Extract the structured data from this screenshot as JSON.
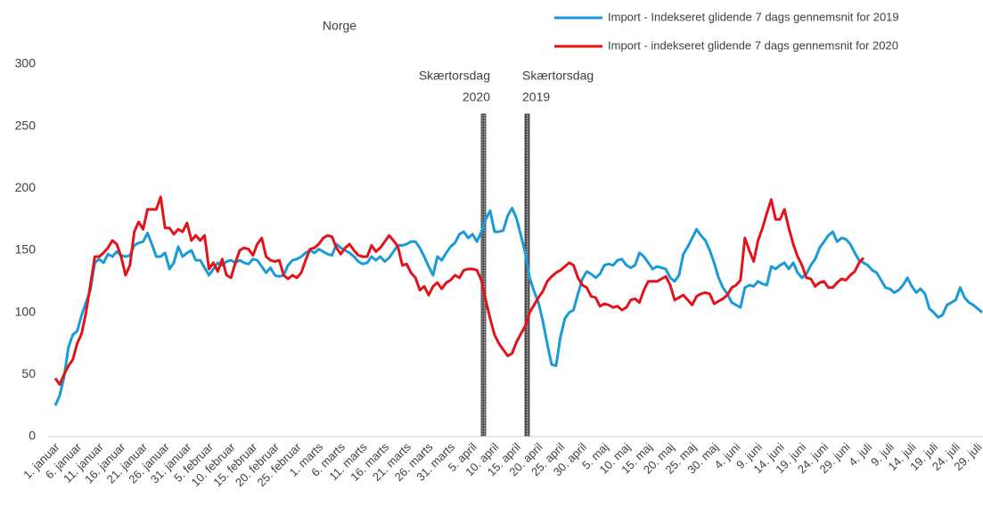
{
  "chart_data": {
    "type": "line",
    "title": "Norge",
    "categories": [
      "1. januar",
      null,
      null,
      null,
      null,
      "6. januar",
      null,
      null,
      null,
      null,
      "11. januar",
      null,
      null,
      null,
      null,
      "16. januar",
      null,
      null,
      null,
      null,
      "21. januar",
      null,
      null,
      null,
      null,
      "26. januar",
      null,
      null,
      null,
      null,
      "31. januar",
      null,
      null,
      null,
      null,
      "5. februar",
      null,
      null,
      null,
      null,
      "10. februar",
      null,
      null,
      null,
      null,
      "15. februar",
      null,
      null,
      null,
      null,
      "20. februar",
      null,
      null,
      null,
      null,
      "25. februar",
      null,
      null,
      null,
      null,
      "1. marts",
      null,
      null,
      null,
      null,
      "6. marts",
      null,
      null,
      null,
      null,
      "11. marts",
      null,
      null,
      null,
      null,
      "16. marts",
      null,
      null,
      null,
      null,
      "21. marts",
      null,
      null,
      null,
      null,
      "26. marts",
      null,
      null,
      null,
      null,
      "31. marts",
      null,
      null,
      null,
      null,
      "5. april",
      null,
      null,
      null,
      null,
      "10. april",
      null,
      null,
      null,
      null,
      "15. april",
      null,
      null,
      null,
      null,
      "20. april",
      null,
      null,
      null,
      null,
      "25. april",
      null,
      null,
      null,
      null,
      "30. april",
      null,
      null,
      null,
      null,
      "5. maj",
      null,
      null,
      null,
      null,
      "10. maj",
      null,
      null,
      null,
      null,
      "15. maj",
      null,
      null,
      null,
      null,
      "20. maj",
      null,
      null,
      null,
      null,
      "25. maj",
      null,
      null,
      null,
      null,
      "30. maj",
      null,
      null,
      null,
      null,
      "4. juni",
      null,
      null,
      null,
      null,
      "9. juni",
      null,
      null,
      null,
      null,
      "14. juni",
      null,
      null,
      null,
      null,
      "19. juni",
      null,
      null,
      null,
      null,
      "24. juni",
      null,
      null,
      null,
      null,
      "29. juni",
      null,
      null,
      null,
      null,
      "4. juli",
      null,
      null,
      null,
      null,
      "9. juli",
      null,
      null,
      null,
      null,
      "14. juli",
      null,
      null,
      null,
      null,
      "19. juli",
      null,
      null,
      null,
      null,
      "24. juli",
      null,
      null,
      null,
      null,
      "29. juli",
      null
    ],
    "series": [
      {
        "name": "Import - Indekseret glidende 7 dags gennemsnit for 2019",
        "color": "#1b9ad8",
        "values": [
          25,
          33,
          48,
          72,
          82,
          85,
          98,
          108,
          118,
          140,
          143,
          140,
          147,
          145,
          149,
          146,
          145,
          146,
          154,
          156,
          157,
          164,
          155,
          145,
          145,
          148,
          135,
          140,
          153,
          145,
          148,
          150,
          142,
          142,
          136,
          130,
          135,
          140,
          138,
          141,
          142,
          140,
          142,
          140,
          139,
          143,
          142,
          137,
          132,
          136,
          130,
          129,
          130,
          138,
          142,
          143,
          145,
          148,
          150,
          148,
          151,
          149,
          147,
          146,
          155,
          152,
          150,
          148,
          145,
          141,
          139,
          140,
          145,
          142,
          145,
          141,
          144,
          149,
          154,
          154,
          155,
          157,
          157,
          152,
          145,
          137,
          130,
          145,
          142,
          148,
          153,
          156,
          163,
          165,
          160,
          163,
          157,
          165,
          175,
          182,
          165,
          165,
          166,
          178,
          184,
          176,
          162,
          148,
          128,
          117,
          108,
          93,
          75,
          58,
          57,
          80,
          95,
          100,
          102,
          115,
          127,
          133,
          131,
          128,
          131,
          138,
          139,
          138,
          142,
          143,
          138,
          136,
          138,
          148,
          145,
          140,
          135,
          137,
          136,
          135,
          128,
          125,
          130,
          147,
          153,
          160,
          167,
          162,
          158,
          150,
          140,
          128,
          120,
          115,
          108,
          106,
          104,
          120,
          122,
          121,
          125,
          123,
          122,
          137,
          135,
          138,
          140,
          135,
          140,
          132,
          128,
          131,
          138,
          143,
          152,
          157,
          162,
          165,
          157,
          160,
          159,
          155,
          148,
          142,
          140,
          138,
          134,
          132,
          126,
          120,
          119,
          116,
          118,
          122,
          128,
          121,
          116,
          119,
          115,
          103,
          100,
          96,
          98,
          106,
          108,
          110,
          120,
          112,
          108,
          106,
          103,
          100
        ]
      },
      {
        "name": "Import - indekseret glidende 7 dags gennemsnit for 2020",
        "color": "#e3131b",
        "values": [
          47,
          42,
          50,
          57,
          62,
          75,
          83,
          100,
          122,
          145,
          145,
          148,
          152,
          158,
          155,
          145,
          130,
          138,
          165,
          173,
          167,
          183,
          183,
          183,
          193,
          168,
          168,
          163,
          167,
          165,
          172,
          158,
          162,
          158,
          162,
          135,
          140,
          133,
          143,
          130,
          128,
          140,
          150,
          152,
          151,
          146,
          155,
          160,
          145,
          142,
          141,
          142,
          130,
          127,
          130,
          128,
          132,
          142,
          151,
          152,
          155,
          160,
          162,
          161,
          152,
          147,
          152,
          155,
          150,
          146,
          145,
          145,
          154,
          149,
          152,
          157,
          162,
          158,
          153,
          138,
          139,
          132,
          128,
          118,
          121,
          114,
          121,
          124,
          119,
          124,
          126,
          130,
          128,
          134,
          135,
          135,
          134,
          126,
          110,
          95,
          82,
          75,
          70,
          65,
          67,
          76,
          83,
          89,
          100,
          106,
          112,
          117,
          125,
          129,
          132,
          134,
          137,
          140,
          138,
          128,
          122,
          120,
          113,
          112,
          105,
          107,
          106,
          104,
          105,
          102,
          104,
          110,
          111,
          108,
          118,
          125,
          125,
          125,
          127,
          129,
          122,
          110,
          112,
          114,
          110,
          106,
          113,
          115,
          116,
          115,
          107,
          109,
          111,
          114,
          120,
          122,
          126,
          160,
          150,
          141,
          158,
          168,
          180,
          191,
          175,
          175,
          183,
          168,
          155,
          145,
          138,
          128,
          127,
          121,
          124,
          125,
          120,
          120,
          124,
          127,
          126,
          130,
          133,
          140,
          144,
          null,
          null,
          null,
          null,
          null,
          null,
          null,
          null,
          null,
          null,
          null,
          null,
          null,
          null,
          null,
          null,
          null,
          null,
          null,
          null,
          null,
          null,
          null,
          null,
          null,
          null,
          null
        ]
      }
    ],
    "annotations": [
      [
        "Skærtorsdag",
        "2020"
      ],
      [
        "Skærtorsdag",
        "2019"
      ]
    ],
    "ylim": [
      0,
      300
    ],
    "yticks": [
      0,
      50,
      100,
      150,
      200,
      250,
      300
    ],
    "grid": false
  }
}
